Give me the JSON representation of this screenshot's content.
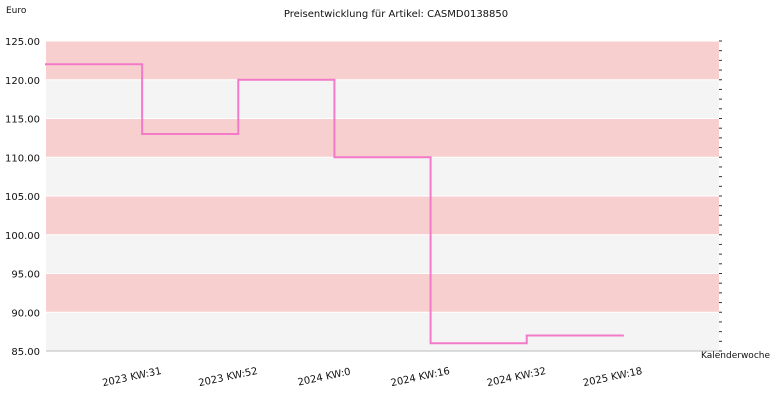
{
  "chart_data": {
    "type": "line",
    "title": "Preisentwicklung für Artikel: CASMD0138850",
    "xlabel": "Kalenderwoche",
    "ylabel": "Euro",
    "ylim": [
      85,
      125
    ],
    "y_ticks": [
      125,
      120,
      115,
      110,
      105,
      100,
      95,
      90,
      85
    ],
    "y_tick_labels": [
      "125.00",
      "120.00",
      "115.00",
      "110.00",
      "105.00",
      "100.00",
      "95.00",
      "90.00",
      "85.00"
    ],
    "x_tick_labels": [
      "2023 KW:31",
      "2023 KW:52",
      "2024 KW:0",
      "2024 KW:16",
      "2024 KW:32",
      "2025 KW:18"
    ],
    "grid": true,
    "legend": "none",
    "background_bands": [
      "#f7cfcf",
      "#f4f4f4"
    ],
    "series": [
      {
        "color": "#f27ac8",
        "line_style": "step",
        "values": [
          122,
          113,
          120,
          110,
          86,
          87
        ]
      }
    ]
  }
}
